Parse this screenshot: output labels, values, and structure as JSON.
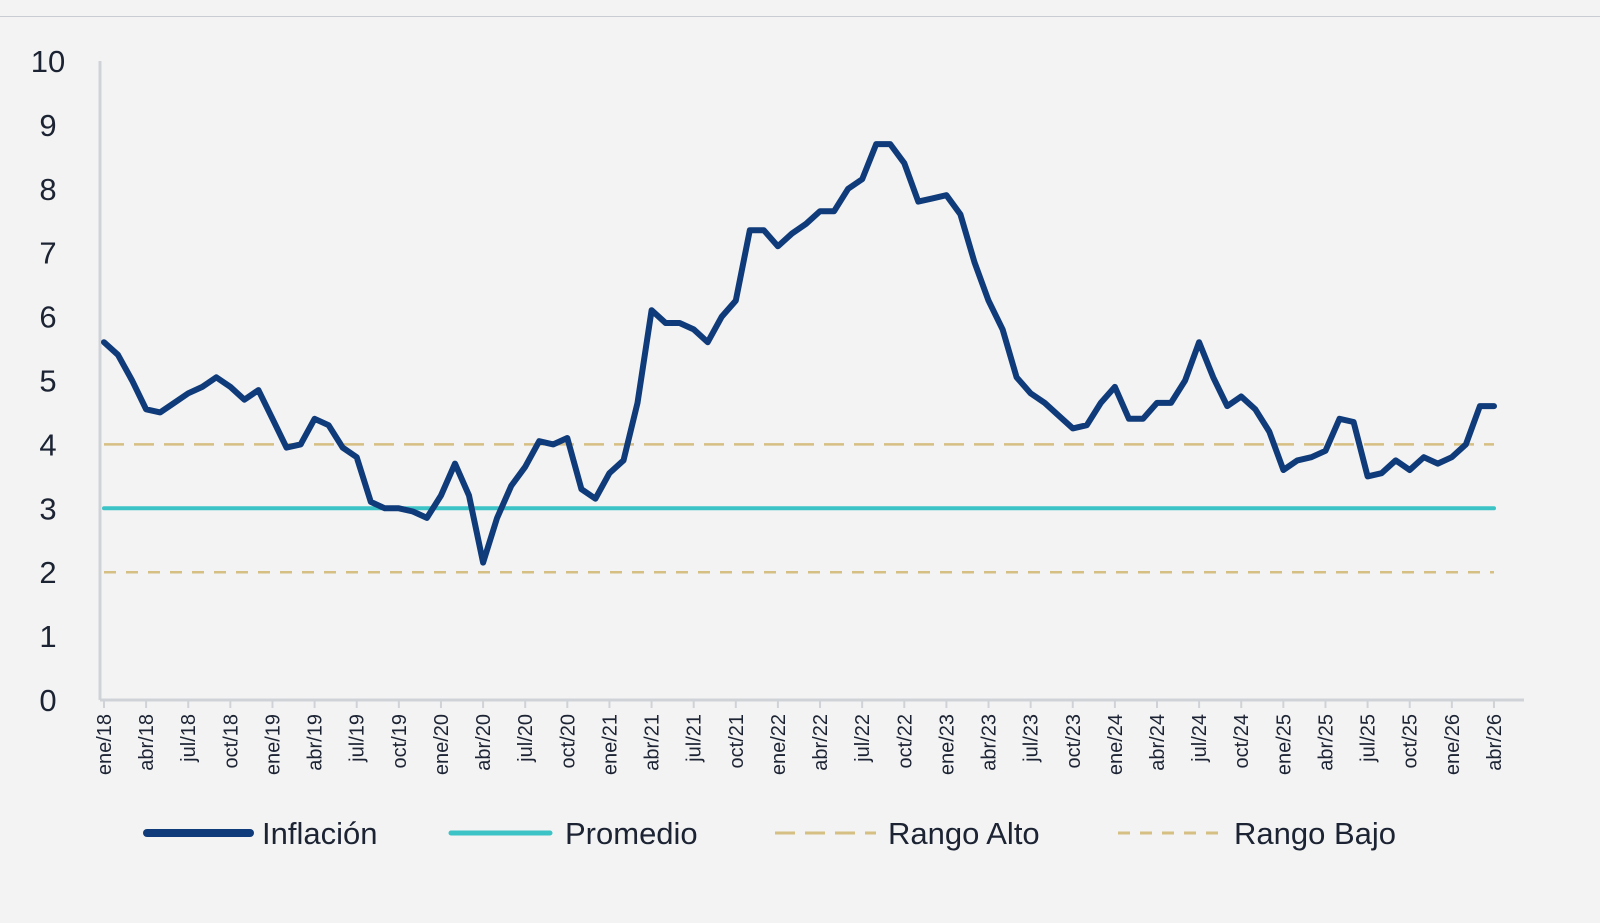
{
  "chart_data": {
    "type": "line",
    "title": "",
    "xlabel": "",
    "ylabel": "",
    "ylim": [
      0,
      10
    ],
    "yticks": [
      0,
      1,
      2,
      3,
      4,
      5,
      6,
      7,
      8,
      9,
      10
    ],
    "grid": false,
    "legend_position": "bottom",
    "x_start": "2018-01",
    "x_end": "2026-05",
    "x_tick_labels": [
      "ene/18",
      "abr/18",
      "jul/18",
      "oct/18",
      "ene/19",
      "abr/19",
      "jul/19",
      "oct/19",
      "ene/20",
      "abr/20",
      "jul/20",
      "oct/20",
      "ene/21",
      "abr/21",
      "jul/21",
      "oct/21",
      "ene/22",
      "abr/22",
      "jul/22",
      "oct/22",
      "ene/23",
      "abr/23",
      "jul/23",
      "oct/23",
      "ene/24",
      "abr/24",
      "jul/24",
      "oct/24",
      "ene/25",
      "abr/25",
      "jul/25",
      "oct/25",
      "ene/26",
      "abr/26"
    ],
    "series": [
      {
        "name": "Inflación",
        "style": "solid",
        "color": "#0f3b7a",
        "points": [
          [
            "2018-01",
            5.6
          ],
          [
            "2018-02",
            5.4
          ],
          [
            "2018-03",
            5.0
          ],
          [
            "2018-04",
            4.55
          ],
          [
            "2018-05",
            4.5
          ],
          [
            "2018-06",
            4.65
          ],
          [
            "2018-07",
            4.8
          ],
          [
            "2018-08",
            4.9
          ],
          [
            "2018-09",
            5.05
          ],
          [
            "2018-10",
            4.9
          ],
          [
            "2018-11",
            4.7
          ],
          [
            "2018-12",
            4.85
          ],
          [
            "2019-01",
            4.4
          ],
          [
            "2019-02",
            3.95
          ],
          [
            "2019-03",
            4.0
          ],
          [
            "2019-04",
            4.4
          ],
          [
            "2019-05",
            4.3
          ],
          [
            "2019-06",
            3.95
          ],
          [
            "2019-07",
            3.8
          ],
          [
            "2019-08",
            3.1
          ],
          [
            "2019-09",
            3.0
          ],
          [
            "2019-10",
            3.0
          ],
          [
            "2019-11",
            2.95
          ],
          [
            "2019-12",
            2.85
          ],
          [
            "2020-01",
            3.2
          ],
          [
            "2020-02",
            3.7
          ],
          [
            "2020-03",
            3.2
          ],
          [
            "2020-04",
            2.15
          ],
          [
            "2020-05",
            2.85
          ],
          [
            "2020-06",
            3.35
          ],
          [
            "2020-07",
            3.65
          ],
          [
            "2020-08",
            4.05
          ],
          [
            "2020-09",
            4.0
          ],
          [
            "2020-10",
            4.1
          ],
          [
            "2020-11",
            3.3
          ],
          [
            "2020-12",
            3.15
          ],
          [
            "2021-01",
            3.55
          ],
          [
            "2021-02",
            3.75
          ],
          [
            "2021-03",
            4.65
          ],
          [
            "2021-04",
            6.1
          ],
          [
            "2021-05",
            5.9
          ],
          [
            "2021-06",
            5.9
          ],
          [
            "2021-07",
            5.8
          ],
          [
            "2021-08",
            5.6
          ],
          [
            "2021-09",
            6.0
          ],
          [
            "2021-10",
            6.25
          ],
          [
            "2021-11",
            7.35
          ],
          [
            "2021-12",
            7.35
          ],
          [
            "2022-01",
            7.1
          ],
          [
            "2022-02",
            7.3
          ],
          [
            "2022-03",
            7.45
          ],
          [
            "2022-04",
            7.65
          ],
          [
            "2022-05",
            7.65
          ],
          [
            "2022-06",
            8.0
          ],
          [
            "2022-07",
            8.15
          ],
          [
            "2022-08",
            8.7
          ],
          [
            "2022-09",
            8.7
          ],
          [
            "2022-10",
            8.4
          ],
          [
            "2022-11",
            7.8
          ],
          [
            "2022-12",
            7.85
          ],
          [
            "2023-01",
            7.9
          ],
          [
            "2023-02",
            7.6
          ],
          [
            "2023-03",
            6.85
          ],
          [
            "2023-04",
            6.25
          ],
          [
            "2023-05",
            5.8
          ],
          [
            "2023-06",
            5.05
          ],
          [
            "2023-07",
            4.8
          ],
          [
            "2023-08",
            4.65
          ],
          [
            "2023-09",
            4.45
          ],
          [
            "2023-10",
            4.25
          ],
          [
            "2023-11",
            4.3
          ],
          [
            "2023-12",
            4.65
          ],
          [
            "2024-01",
            4.9
          ],
          [
            "2024-02",
            4.4
          ],
          [
            "2024-03",
            4.4
          ],
          [
            "2024-04",
            4.65
          ],
          [
            "2024-05",
            4.65
          ],
          [
            "2024-06",
            5.0
          ],
          [
            "2024-07",
            5.6
          ],
          [
            "2024-08",
            5.05
          ],
          [
            "2024-09",
            4.6
          ],
          [
            "2024-10",
            4.75
          ],
          [
            "2024-11",
            4.55
          ],
          [
            "2024-12",
            4.2
          ],
          [
            "2025-01",
            3.6
          ],
          [
            "2025-02",
            3.75
          ],
          [
            "2025-03",
            3.8
          ],
          [
            "2025-04",
            3.9
          ],
          [
            "2025-05",
            4.4
          ],
          [
            "2025-06",
            4.35
          ],
          [
            "2025-07",
            3.5
          ],
          [
            "2025-08",
            3.55
          ],
          [
            "2025-09",
            3.75
          ],
          [
            "2025-10",
            3.6
          ],
          [
            "2025-11",
            3.8
          ],
          [
            "2025-12",
            3.7
          ],
          [
            "2026-01",
            3.8
          ],
          [
            "2026-02",
            4.0
          ],
          [
            "2026-03",
            4.6
          ],
          [
            "2026-04",
            4.6
          ]
        ]
      },
      {
        "name": "Promedio",
        "style": "solid",
        "color": "#3cc3c6",
        "points": [
          [
            "2018-01",
            3.0
          ],
          [
            "2026-04",
            3.0
          ]
        ]
      },
      {
        "name": "Rango Alto",
        "style": "long-dash",
        "color": "#d6bf83",
        "points": [
          [
            "2018-01",
            4.0
          ],
          [
            "2026-04",
            4.0
          ]
        ]
      },
      {
        "name": "Rango Bajo",
        "style": "short-dash",
        "color": "#d6bf83",
        "points": [
          [
            "2018-01",
            2.0
          ],
          [
            "2026-04",
            2.0
          ]
        ]
      }
    ]
  }
}
